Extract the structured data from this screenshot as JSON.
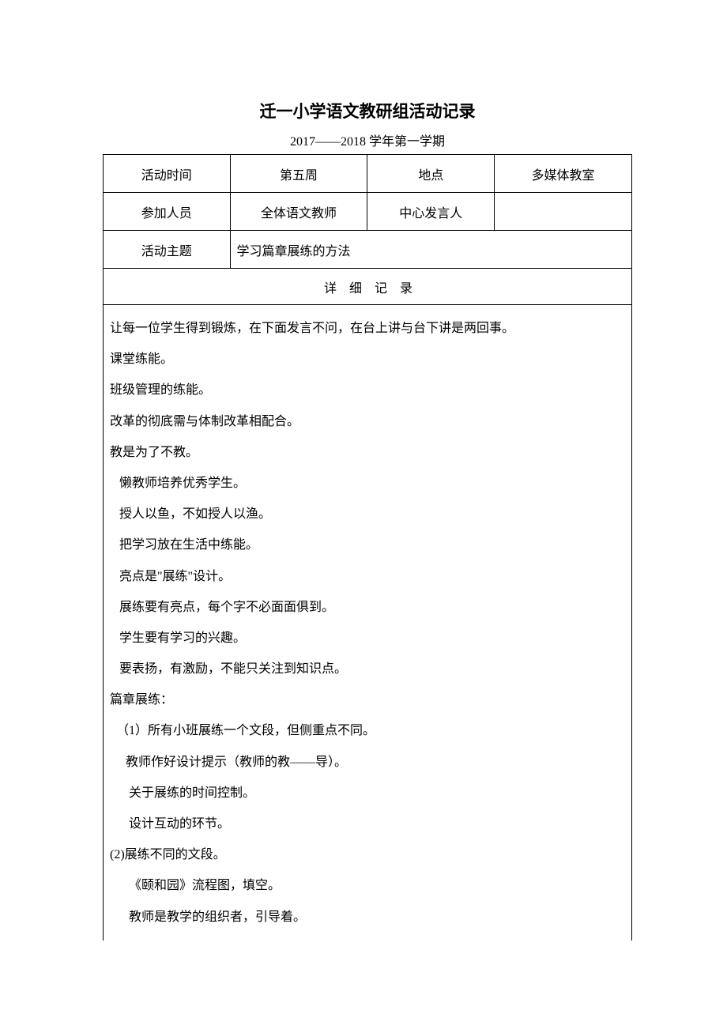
{
  "doc": {
    "title": "迁一小学语文教研组活动记录",
    "subtitle": "2017——2018 学年第一学期",
    "headerRow1": {
      "c1": "活动时间",
      "c2": "第五周",
      "c3": "地点",
      "c4": "多媒体教室"
    },
    "headerRow2": {
      "c1": "参加人员",
      "c2": "全体语文教师",
      "c3": "中心发言人",
      "c4": ""
    },
    "headerRow3": {
      "c1": "活动主题",
      "c2": "学习篇章展练的方法"
    },
    "sectionHeader": "详细记录",
    "body": {
      "l0": "让每一位学生得到锻炼，在下面发言不问，在台上讲与台下讲是两回事。",
      "l1": "课堂练能。",
      "l2": "班级管理的练能。",
      "l3": "改革的彻底需与体制改革相配合。",
      "l4": "教是为了不教。",
      "l5": "   懒教师培养优秀学生。",
      "l6": "   授人以鱼，不如授人以渔。",
      "l7": "   把学习放在生活中练能。",
      "l8": "   亮点是\"展练\"设计。",
      "l9": "   展练要有亮点，每个字不必面面俱到。",
      "l10": "   学生要有学习的兴趣。",
      "l11": "   要表扬，有激励，不能只关注到知识点。",
      "l12": "篇章展练：",
      "l13": "  （1）所有小班展练一个文段，但侧重点不同。",
      "l14": "     教师作好设计提示（教师的教——导）。",
      "l15": "      关于展练的时间控制。",
      "l16": "      设计互动的环节。",
      "l17": "(2)展练不同的文段。",
      "l18": "      《颐和园》流程图，填空。",
      "l19": "      教师是教学的组织者，引导着。"
    },
    "colors": {
      "background": "#ffffff",
      "text": "#000000",
      "border": "#000000"
    },
    "typography": {
      "title_fontsize": 21,
      "subtitle_fontsize": 16,
      "body_fontsize": 16,
      "font_family": "SimSun"
    }
  }
}
